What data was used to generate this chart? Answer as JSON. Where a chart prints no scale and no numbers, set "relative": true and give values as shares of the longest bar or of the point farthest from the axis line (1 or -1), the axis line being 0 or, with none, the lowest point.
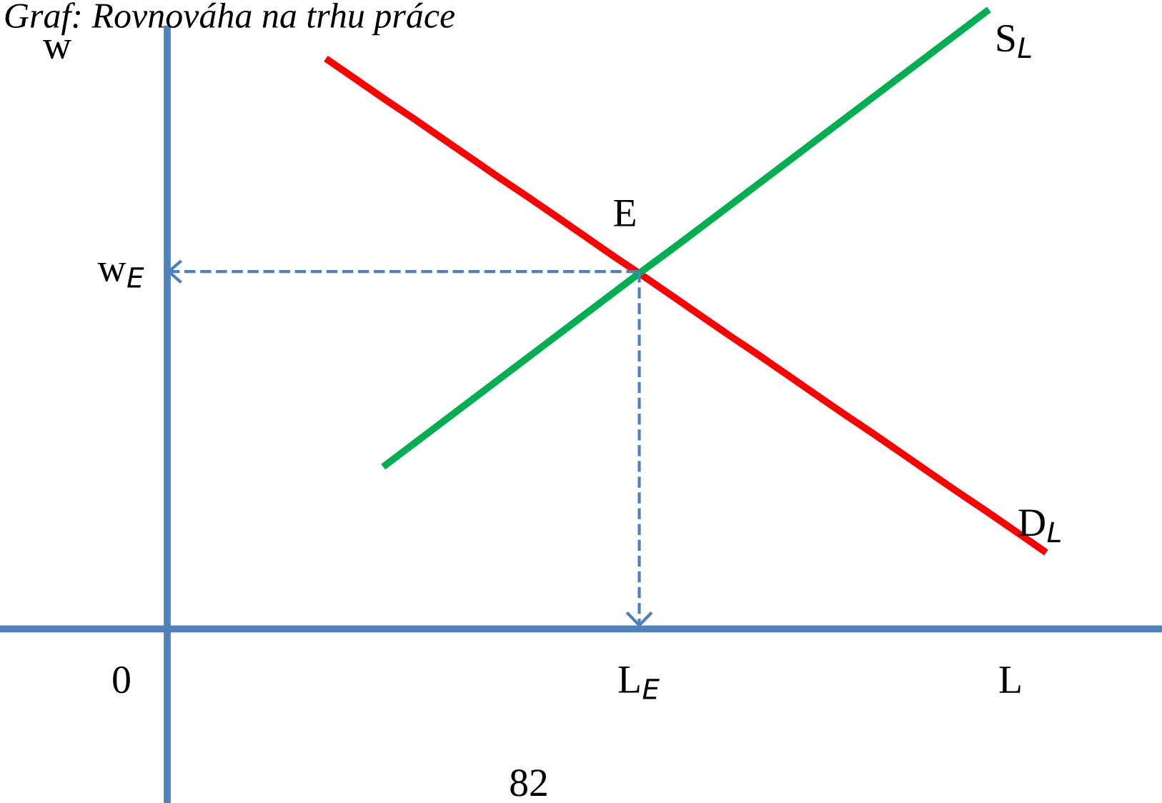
{
  "chart_data": {
    "type": "line",
    "title": "Graf: Rovnováha na trhu práce",
    "xlabel": "L",
    "relative": true,
    "categories": [
      null,
      null,
      null,
      null,
      null,
      null,
      null,
      null,
      null,
      null,
      null,
      null,
      null,
      null,
      null,
      null,
      null,
      null,
      null,
      null,
      null,
      null,
      null,
      null,
      null,
      null
    ],
    "series": [
      {
        "name": "D$_{L}$",
        "color": "#ff0000",
        "values": [
          0.921,
          0.889,
          0.857,
          0.826,
          0.794,
          0.762,
          0.73,
          0.699,
          0.667,
          0.635,
          0.603,
          0.572,
          0.54,
          0.508,
          0.476,
          0.445,
          0.413,
          0.381,
          0.349,
          0.318,
          0.286,
          0.254,
          0.222,
          0.191,
          0.159,
          0.127
        ]
      },
      {
        "name": "S$_{L}$",
        "color": "#00b050",
        "values": [
          null,
          null,
          0.266,
          0.301,
          0.336,
          0.371,
          0.406,
          0.441,
          0.476,
          0.511,
          0.546,
          0.581,
          0.615,
          0.65,
          0.685,
          0.72,
          0.755,
          0.79,
          0.825,
          0.86,
          0.895,
          0.93,
          0.965,
          1.0,
          null,
          null
        ]
      }
    ],
    "ref_lines": [
      {
        "axis": "y",
        "value": 0.579,
        "label": "w$_{E}$",
        "color": "#4f81bd",
        "line_style": "dashed"
      }
    ],
    "annotations": [
      "E",
      "0",
      "82",
      "w",
      "L$_{E}$"
    ],
    "legend": false,
    "marker": "none",
    "line_style": "solid"
  }
}
